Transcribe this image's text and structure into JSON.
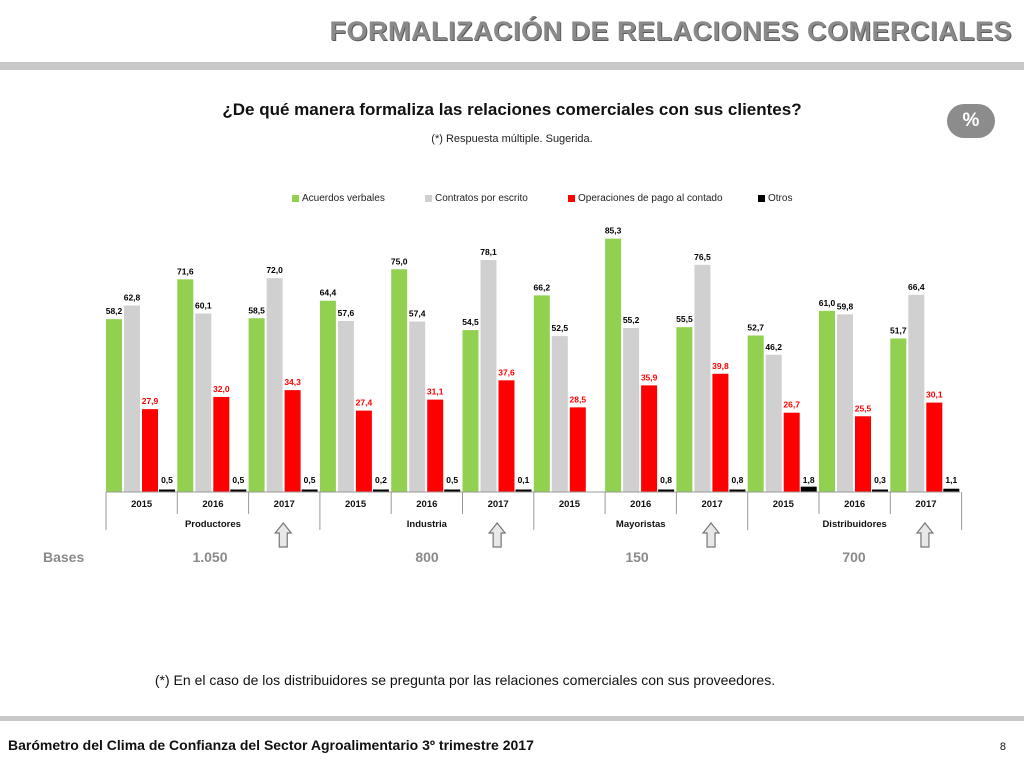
{
  "header": {
    "title": "FORMALIZACIÓN DE RELACIONES COMERCIALES"
  },
  "question": "¿De qué manera formaliza las relaciones comerciales con sus clientes?",
  "subtitle": "(*) Respuesta múltiple. Sugerida.",
  "badge": "%",
  "colors": {
    "acuerdos": "#92d050",
    "contratos": "#d0d0d0",
    "operaciones": "#ff0000",
    "otros": "#000000",
    "accent_gray": "#8a8a8a"
  },
  "chart_data": {
    "type": "bar",
    "groups": [
      "Productores",
      "Industria",
      "Mayoristas",
      "Distribuidores"
    ],
    "years": [
      "2015",
      "2016",
      "2017"
    ],
    "categories": [
      "Productores 2015",
      "Productores 2016",
      "Productores 2017",
      "Industria 2015",
      "Industria 2016",
      "Industria 2017",
      "Mayoristas 2015",
      "Mayoristas 2016",
      "Mayoristas 2017",
      "Distribuidores 2015",
      "Distribuidores 2016",
      "Distribuidores 2017"
    ],
    "series": [
      {
        "name": "Acuerdos verbales",
        "color": "#92d050",
        "label_color": "#000000",
        "values": [
          58.2,
          71.6,
          58.5,
          64.4,
          75.0,
          54.5,
          66.2,
          85.3,
          55.5,
          52.7,
          61.0,
          51.7
        ],
        "labels": [
          "58,2",
          "71,6",
          "58,5",
          "64,4",
          "75,0",
          "54,5",
          "66,2",
          "85,3",
          "55,5",
          "52,7",
          "61,0",
          "51,7"
        ]
      },
      {
        "name": "Contratos por escrito",
        "color": "#d0d0d0",
        "label_color": "#000000",
        "values": [
          62.8,
          60.1,
          72.0,
          57.6,
          57.4,
          78.1,
          52.5,
          55.2,
          76.5,
          46.2,
          59.8,
          66.4
        ],
        "labels": [
          "62,8",
          "60,1",
          "72,0",
          "57,6",
          "57,4",
          "78,1",
          "52,5",
          "55,2",
          "76,5",
          "46,2",
          "59,8",
          "66,4"
        ]
      },
      {
        "name": "Operaciones de pago al contado",
        "color": "#ff0000",
        "label_color": "#ff0000",
        "values": [
          27.9,
          32.0,
          34.3,
          27.4,
          31.1,
          37.6,
          28.5,
          35.9,
          39.8,
          26.7,
          25.5,
          30.1
        ],
        "labels": [
          "27,9",
          "32,0",
          "34,3",
          "27,4",
          "31,1",
          "37,6",
          "28,5",
          "35,9",
          "39,8",
          "26,7",
          "25,5",
          "30,1"
        ]
      },
      {
        "name": "Otros",
        "color": "#000000",
        "label_color": "#000000",
        "values": [
          0.5,
          0.5,
          0.5,
          0.2,
          0.5,
          0.1,
          null,
          0.8,
          0.8,
          1.8,
          0.3,
          1.1
        ],
        "labels": [
          "0,5",
          "0,5",
          "0,5",
          "0,2",
          "0,5",
          "0,1",
          "",
          "0,8",
          "0,8",
          "1,8",
          "0,3",
          "1,1"
        ]
      }
    ],
    "ylim": [
      0,
      100
    ],
    "legend_position": "top",
    "grid": false
  },
  "bases": {
    "label": "Bases",
    "values": [
      "1.050",
      "800",
      "150",
      "700"
    ]
  },
  "footnote": "(*) En el caso de los distribuidores se pregunta por las relaciones comerciales con sus proveedores.",
  "footer": {
    "text": "Barómetro del Clima de Confianza del Sector Agroalimentario 3º trimestre 2017",
    "page": "8"
  }
}
